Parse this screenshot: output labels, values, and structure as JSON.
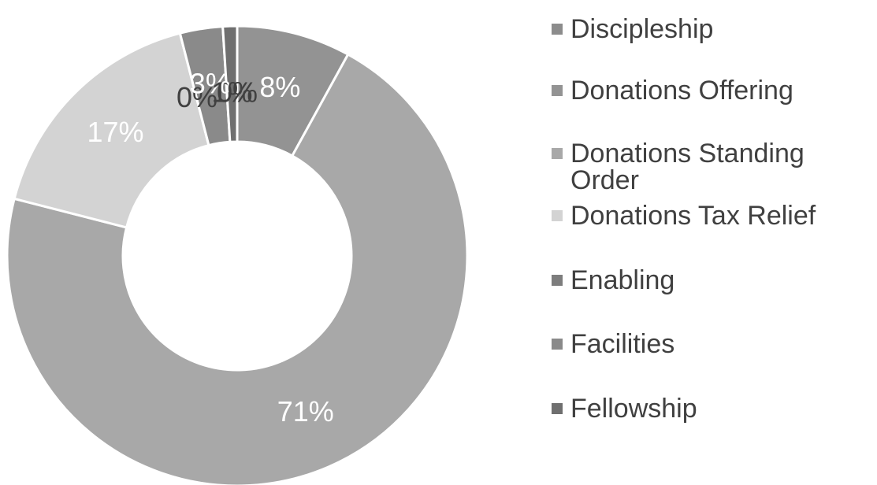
{
  "chart_data": {
    "type": "donut",
    "categories": [
      "Discipleship",
      "Donations Offering",
      "Donations Standing Order",
      "Donations Tax Relief",
      "Enabling",
      "Facilities",
      "Fellowship"
    ],
    "values": [
      0,
      8,
      71,
      17,
      0,
      3,
      1
    ],
    "value_labels": [
      "0%",
      "8%",
      "71%",
      "17%",
      "0%",
      "3%",
      "1%"
    ],
    "colors": [
      "#8c8c8c",
      "#939393",
      "#a8a8a8",
      "#d3d3d3",
      "#7d7d7d",
      "#8a8a8a",
      "#6f6f6f"
    ],
    "legend": "right"
  }
}
